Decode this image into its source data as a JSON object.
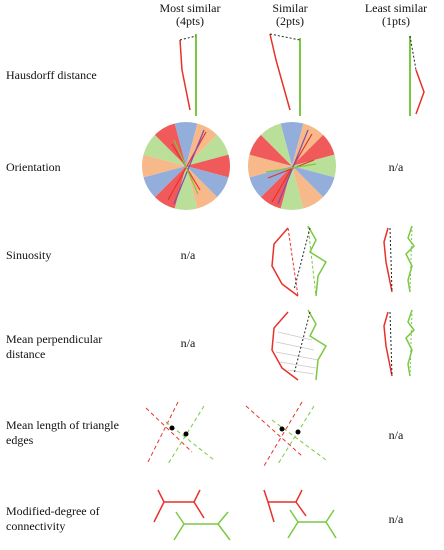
{
  "columns": [
    {
      "title": "Most similar",
      "sub": "(4pts)"
    },
    {
      "title": "Similar",
      "sub": "(2pts)"
    },
    {
      "title": "Least similar",
      "sub": "(1pts)"
    }
  ],
  "rows": [
    {
      "label": "Hausdorff distance"
    },
    {
      "label": "Orientation"
    },
    {
      "label": "Sinuosity"
    },
    {
      "label": "Mean perpendicular distance"
    },
    {
      "label": "Mean length of triangle edges"
    },
    {
      "label": "Modified-degree of connectivity"
    }
  ],
  "na_text": "n/a",
  "colors": {
    "red": "#e8312a",
    "green": "#7ac943",
    "pie_red": "#f05a5a",
    "pie_orange": "#f7b98a",
    "pie_green": "#b9df98",
    "pie_blue": "#94aedb"
  }
}
